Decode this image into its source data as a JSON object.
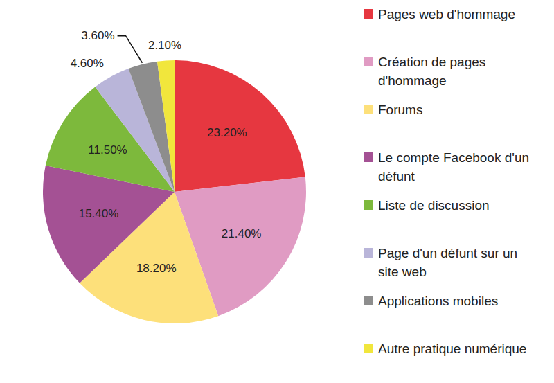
{
  "chart_data": {
    "type": "pie",
    "categories": [
      "Pages web d'hommage",
      "Création de pages d'hommage",
      "Forums",
      "Le compte Facebook d'un défunt",
      "Liste de discussion",
      "Page d'un défunt sur un site web",
      "Applications mobiles",
      "Autre pratique numérique"
    ],
    "values": [
      23.2,
      21.4,
      18.2,
      15.4,
      11.5,
      4.6,
      3.6,
      2.1
    ],
    "value_labels": [
      "23.20%",
      "21.40%",
      "18.20%",
      "15.40%",
      "11.50%",
      "4.60%",
      "3.60%",
      "2.10%"
    ],
    "colors": [
      "#e63740",
      "#e09bc3",
      "#fde07a",
      "#a45194",
      "#7db93c",
      "#b9b5d9",
      "#8d8d8d",
      "#f1e63c"
    ],
    "data_labels": true,
    "legend": "right"
  }
}
